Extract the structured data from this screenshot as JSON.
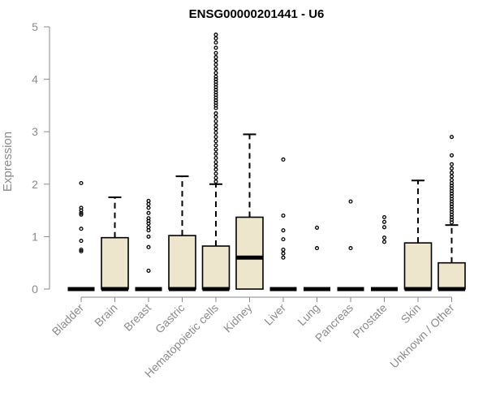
{
  "chart_data": {
    "type": "box",
    "title": "ENSG00000201441 - U6",
    "xlabel": "",
    "ylabel": "Expression",
    "ylim": [
      0,
      5
    ],
    "yticks": [
      0,
      1,
      2,
      3,
      4,
      5
    ],
    "box_fill": "#ede6cc",
    "colors": {
      "box_fill": "#ede6cc",
      "stroke": "#000000",
      "axis": "#8a8a8a"
    },
    "categories": [
      "Bladder",
      "Brain",
      "Breast",
      "Gastric",
      "Hematopoietic cells",
      "Kidney",
      "Liver",
      "Lung",
      "Pancreas",
      "Prostate",
      "Skin",
      "Unknown / Other"
    ],
    "boxes": [
      {
        "category": "Bladder",
        "q1": 0,
        "median": 0,
        "q3": 0,
        "whisker_low": 0,
        "whisker_high": 0,
        "outliers": [
          2.02,
          1.55,
          1.5,
          1.45,
          1.42,
          1.15,
          0.92,
          0.75,
          0.72
        ]
      },
      {
        "category": "Brain",
        "q1": 0,
        "median": 0,
        "q3": 0.98,
        "whisker_low": 0,
        "whisker_high": 1.75,
        "outliers": []
      },
      {
        "category": "Breast",
        "q1": 0,
        "median": 0,
        "q3": 0,
        "whisker_low": 0,
        "whisker_high": 0,
        "outliers": [
          1.68,
          1.62,
          1.55,
          1.45,
          1.35,
          1.3,
          1.25,
          1.18,
          1.12,
          1.0,
          0.8,
          0.35
        ]
      },
      {
        "category": "Gastric",
        "q1": 0,
        "median": 0,
        "q3": 1.02,
        "whisker_low": 0,
        "whisker_high": 2.15,
        "outliers": []
      },
      {
        "category": "Hematopoietic cells",
        "q1": 0,
        "median": 0,
        "q3": 0.82,
        "whisker_low": 0,
        "whisker_high": 2.0,
        "outliers": [
          2.05,
          2.12,
          2.2,
          2.28,
          2.35,
          2.42,
          2.5,
          2.58,
          2.66,
          2.74,
          2.82,
          2.9,
          2.98,
          3.05,
          3.12,
          3.2,
          3.28,
          3.35,
          3.45,
          3.5,
          3.55,
          3.6,
          3.65,
          3.7,
          3.75,
          3.8,
          3.85,
          3.9,
          3.95,
          4.0,
          4.05,
          4.12,
          4.2,
          4.28,
          4.35,
          4.42,
          4.5,
          4.6,
          4.7,
          4.78,
          4.85
        ]
      },
      {
        "category": "Kidney",
        "q1": 0,
        "median": 0.6,
        "q3": 1.37,
        "whisker_low": 0,
        "whisker_high": 2.95,
        "outliers": []
      },
      {
        "category": "Liver",
        "q1": 0,
        "median": 0,
        "q3": 0,
        "whisker_low": 0,
        "whisker_high": 0,
        "outliers": [
          2.47,
          1.4,
          1.12,
          0.95,
          0.75,
          0.68,
          0.6
        ]
      },
      {
        "category": "Lung",
        "q1": 0,
        "median": 0,
        "q3": 0,
        "whisker_low": 0,
        "whisker_high": 0,
        "outliers": [
          1.17,
          0.78
        ]
      },
      {
        "category": "Pancreas",
        "q1": 0,
        "median": 0,
        "q3": 0,
        "whisker_low": 0,
        "whisker_high": 0,
        "outliers": [
          1.67,
          0.78
        ]
      },
      {
        "category": "Prostate",
        "q1": 0,
        "median": 0,
        "q3": 0,
        "whisker_low": 0,
        "whisker_high": 0,
        "outliers": [
          1.37,
          1.28,
          1.18,
          0.98,
          0.9
        ]
      },
      {
        "category": "Skin",
        "q1": 0,
        "median": 0,
        "q3": 0.88,
        "whisker_low": 0,
        "whisker_high": 2.07,
        "outliers": []
      },
      {
        "category": "Unknown / Other",
        "q1": 0,
        "median": 0,
        "q3": 0.5,
        "whisker_low": 0,
        "whisker_high": 1.22,
        "outliers": [
          1.27,
          1.32,
          1.37,
          1.42,
          1.47,
          1.52,
          1.57,
          1.62,
          1.67,
          1.72,
          1.77,
          1.82,
          1.87,
          1.92,
          1.97,
          2.02,
          2.08,
          2.15,
          2.22,
          2.3,
          2.38,
          2.55,
          2.9
        ]
      }
    ]
  }
}
